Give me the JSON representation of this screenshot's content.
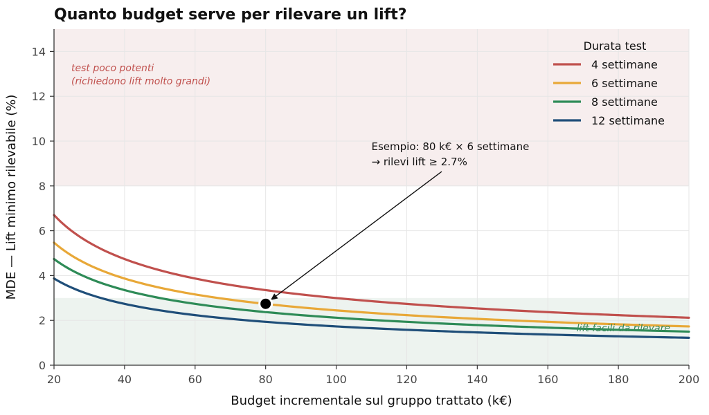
{
  "chart_data": {
    "type": "line",
    "title": "Quanto budget serve per rilevare un lift?",
    "xlabel": "Budget incrementale sul gruppo trattato (k€)",
    "ylabel": "MDE — Lift minimo rilevabile (%)",
    "xlim": [
      20,
      200
    ],
    "ylim": [
      0,
      15
    ],
    "x_ticks": [
      20,
      40,
      60,
      80,
      100,
      120,
      140,
      160,
      180,
      200
    ],
    "y_ticks": [
      0,
      2,
      4,
      6,
      8,
      10,
      12,
      14
    ],
    "grid": true,
    "legend": {
      "title": "Durata test",
      "position": "top-right"
    },
    "x": [
      20,
      40,
      60,
      80,
      100,
      120,
      140,
      160,
      180,
      200
    ],
    "series": [
      {
        "name": "4 settimane",
        "color": "#c0504d",
        "values": [
          6.7,
          4.74,
          3.87,
          3.35,
          3.0,
          2.74,
          2.53,
          2.37,
          2.23,
          2.12
        ]
      },
      {
        "name": "6 settimane",
        "color": "#e8a838",
        "values": [
          5.47,
          3.87,
          3.16,
          2.74,
          2.45,
          2.23,
          2.07,
          1.94,
          1.82,
          1.73
        ]
      },
      {
        "name": "8 settimane",
        "color": "#2e8b57",
        "values": [
          4.74,
          3.35,
          2.74,
          2.37,
          2.12,
          1.93,
          1.79,
          1.68,
          1.58,
          1.5
        ]
      },
      {
        "name": "12 settimane",
        "color": "#1f4e79",
        "values": [
          3.87,
          2.74,
          2.23,
          1.94,
          1.73,
          1.58,
          1.46,
          1.37,
          1.29,
          1.22
        ]
      }
    ],
    "zones": [
      {
        "y_range": [
          8,
          15
        ],
        "color": "#f7eeee",
        "label_lines": [
          "test poco potenti",
          "(richiedono lift molto grandi)"
        ]
      },
      {
        "y_range": [
          0,
          3
        ],
        "color": "#edf3ef",
        "label_lines": [
          "lift facili da rilevare"
        ]
      }
    ],
    "annotation": {
      "point": {
        "x": 80,
        "y": 2.74
      },
      "text_lines": [
        "Esempio: 80 k€ × 6 settimane",
        "→ rilevi lift ≥ 2.7%"
      ],
      "text_anchor": {
        "x": 110,
        "y": 9.6
      }
    }
  }
}
